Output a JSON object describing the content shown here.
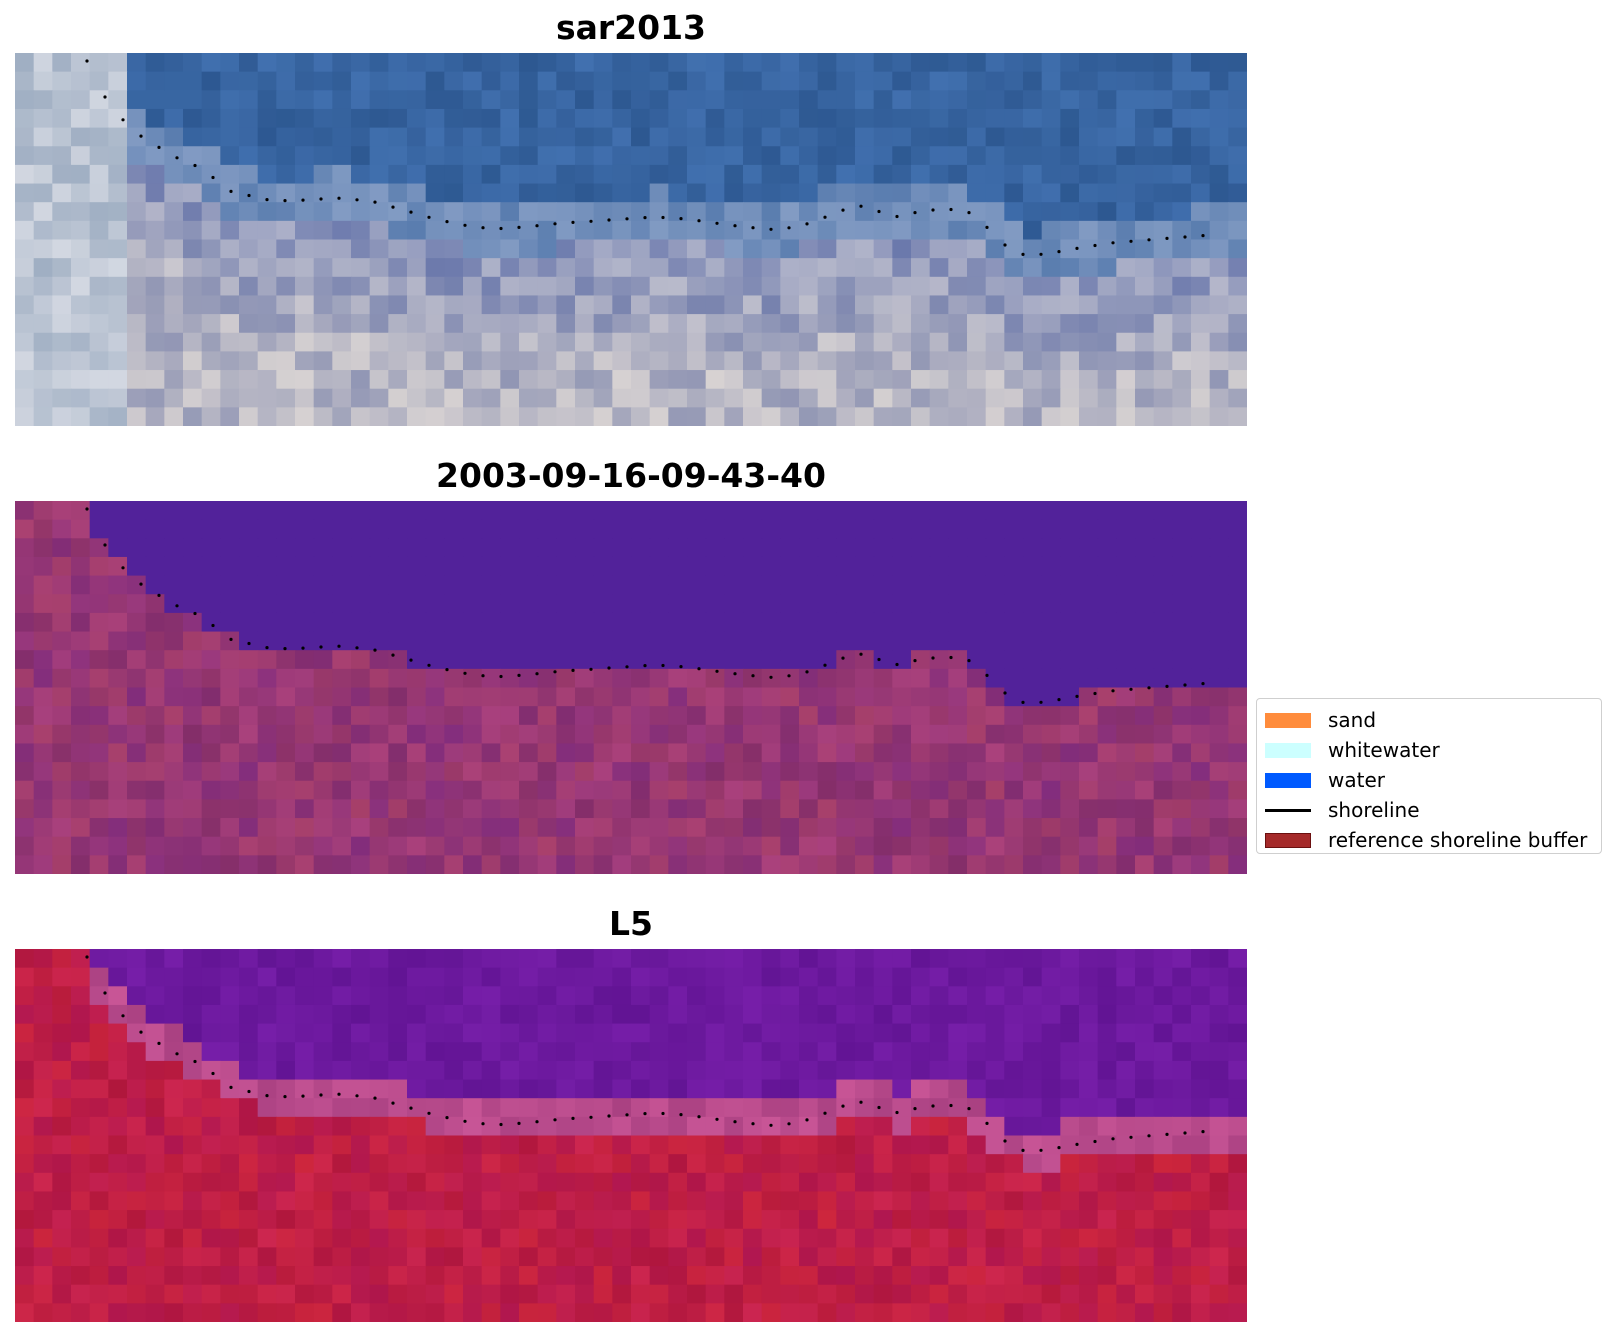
{
  "panels": [
    {
      "title": "sar2013",
      "scheme": "rgb"
    },
    {
      "title": "2003-09-16-09-43-40",
      "scheme": "classified"
    },
    {
      "title": "L5",
      "scheme": "index"
    }
  ],
  "legend": {
    "items": [
      {
        "label": "sand",
        "kind": "patch",
        "color": "#FF8C3C",
        "edge": ""
      },
      {
        "label": "whitewater",
        "kind": "patch",
        "color": "#CCFFFF",
        "edge": ""
      },
      {
        "label": "water",
        "kind": "patch",
        "color": "#005AFF",
        "edge": ""
      },
      {
        "label": "shoreline",
        "kind": "line",
        "color": "#000000",
        "edge": ""
      },
      {
        "label": "reference shoreline buffer",
        "kind": "patch",
        "color": "#A52A2A",
        "edge": "#6B1010"
      }
    ]
  },
  "shoreline_color": "#000000"
}
